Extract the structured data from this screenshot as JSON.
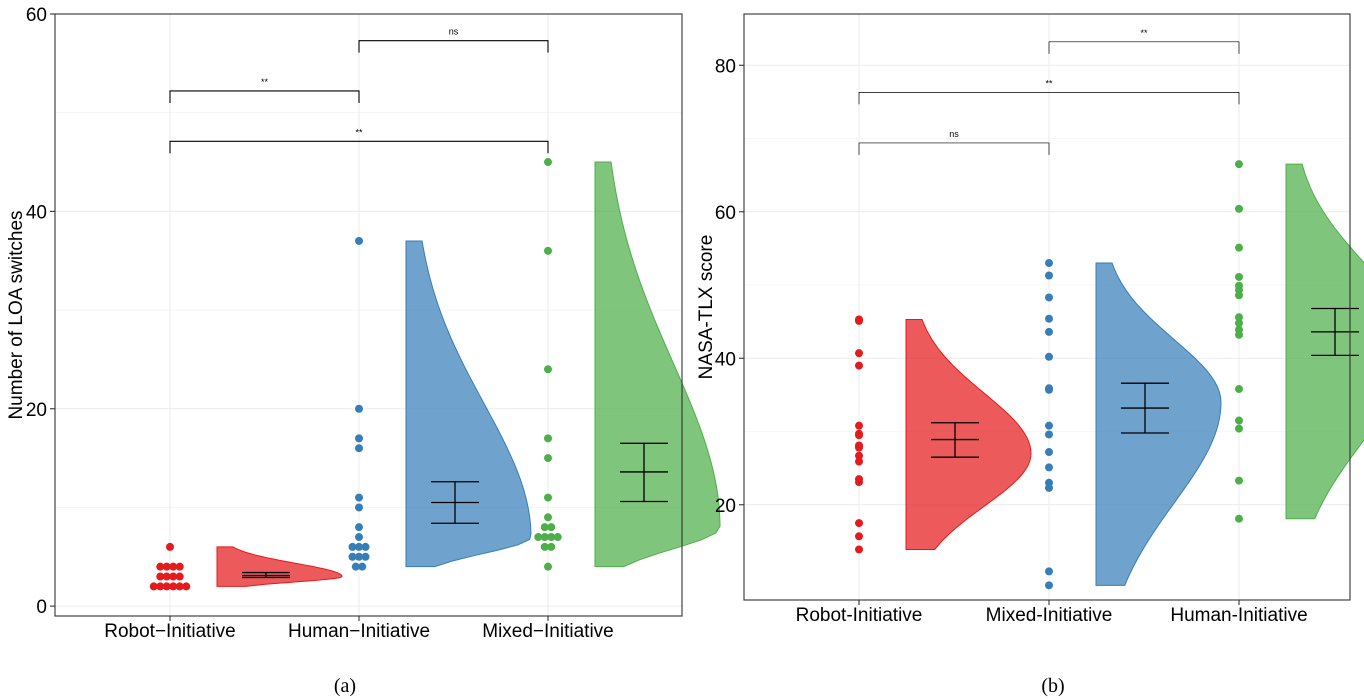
{
  "chart_data": [
    {
      "type": "raincloud",
      "caption": "(a)",
      "ylabel": "Number of LOA switches",
      "ylim": [
        -1,
        60
      ],
      "yticks": [
        0,
        20,
        40,
        60
      ],
      "grid": true,
      "categories": [
        "Robot−Initiative",
        "Human−Initiative",
        "Mixed−Initiative"
      ],
      "colors": [
        "#e41a1c",
        "#377eb8",
        "#4daf4a"
      ],
      "points": [
        [
          6,
          4,
          4,
          4,
          4,
          3,
          3,
          3,
          3,
          2,
          2,
          2,
          2,
          2,
          2
        ],
        [
          37,
          20,
          17,
          16,
          11,
          10,
          8,
          7,
          6,
          6,
          6,
          5,
          5,
          5,
          4,
          4
        ],
        [
          45,
          36,
          24,
          17,
          15,
          11,
          9,
          8,
          8,
          7,
          7,
          7,
          7,
          6,
          6,
          4
        ]
      ],
      "mean": [
        3.1,
        10.5,
        13.6
      ],
      "se_low": [
        2.9,
        8.4,
        10.6
      ],
      "se_high": [
        3.4,
        12.6,
        16.5
      ],
      "density_peak": [
        3,
        7,
        8
      ],
      "comparisons": [
        {
          "pair": [
            0,
            1
          ],
          "label": "**",
          "y": 52.2
        },
        {
          "pair": [
            1,
            2
          ],
          "label": "ns",
          "y": 57.3
        },
        {
          "pair": [
            0,
            2
          ],
          "label": "**",
          "y": 47.1
        }
      ]
    },
    {
      "type": "raincloud",
      "caption": "(b)",
      "ylabel": "NASA-TLX score",
      "ylim": [
        7,
        87
      ],
      "yticks": [
        20,
        40,
        60,
        80
      ],
      "grid": true,
      "categories": [
        "Robot-Initiative",
        "Mixed-Initiative",
        "Human-Initiative"
      ],
      "colors": [
        "#e41a1c",
        "#377eb8",
        "#4daf4a"
      ],
      "points": [
        [
          45.3,
          45.1,
          40.7,
          39.0,
          30.8,
          29.7,
          29.5,
          28.1,
          27.8,
          26.7,
          25.9,
          23.5,
          23.1,
          17.5,
          15.7,
          13.9
        ],
        [
          53.0,
          51.3,
          48.3,
          45.4,
          43.6,
          40.2,
          35.9,
          35.7,
          30.8,
          29.6,
          27.2,
          25.1,
          23.0,
          22.3,
          10.9,
          9.0
        ],
        [
          66.5,
          60.4,
          55.1,
          51.1,
          49.9,
          49.3,
          48.6,
          45.6,
          44.8,
          43.9,
          43.2,
          35.8,
          31.5,
          30.4,
          23.3,
          18.1
        ]
      ],
      "mean": [
        28.9,
        33.2,
        43.6
      ],
      "se_low": [
        26.5,
        29.8,
        40.4
      ],
      "se_high": [
        31.2,
        36.6,
        46.8
      ],
      "density_peak": [
        27,
        34,
        42
      ],
      "comparisons": [
        {
          "pair": [
            0,
            1
          ],
          "label": "ns",
          "y": 69.4
        },
        {
          "pair": [
            0,
            2
          ],
          "label": "**",
          "y": 76.3
        },
        {
          "pair": [
            1,
            2
          ],
          "label": "**",
          "y": 83.2
        }
      ]
    }
  ]
}
